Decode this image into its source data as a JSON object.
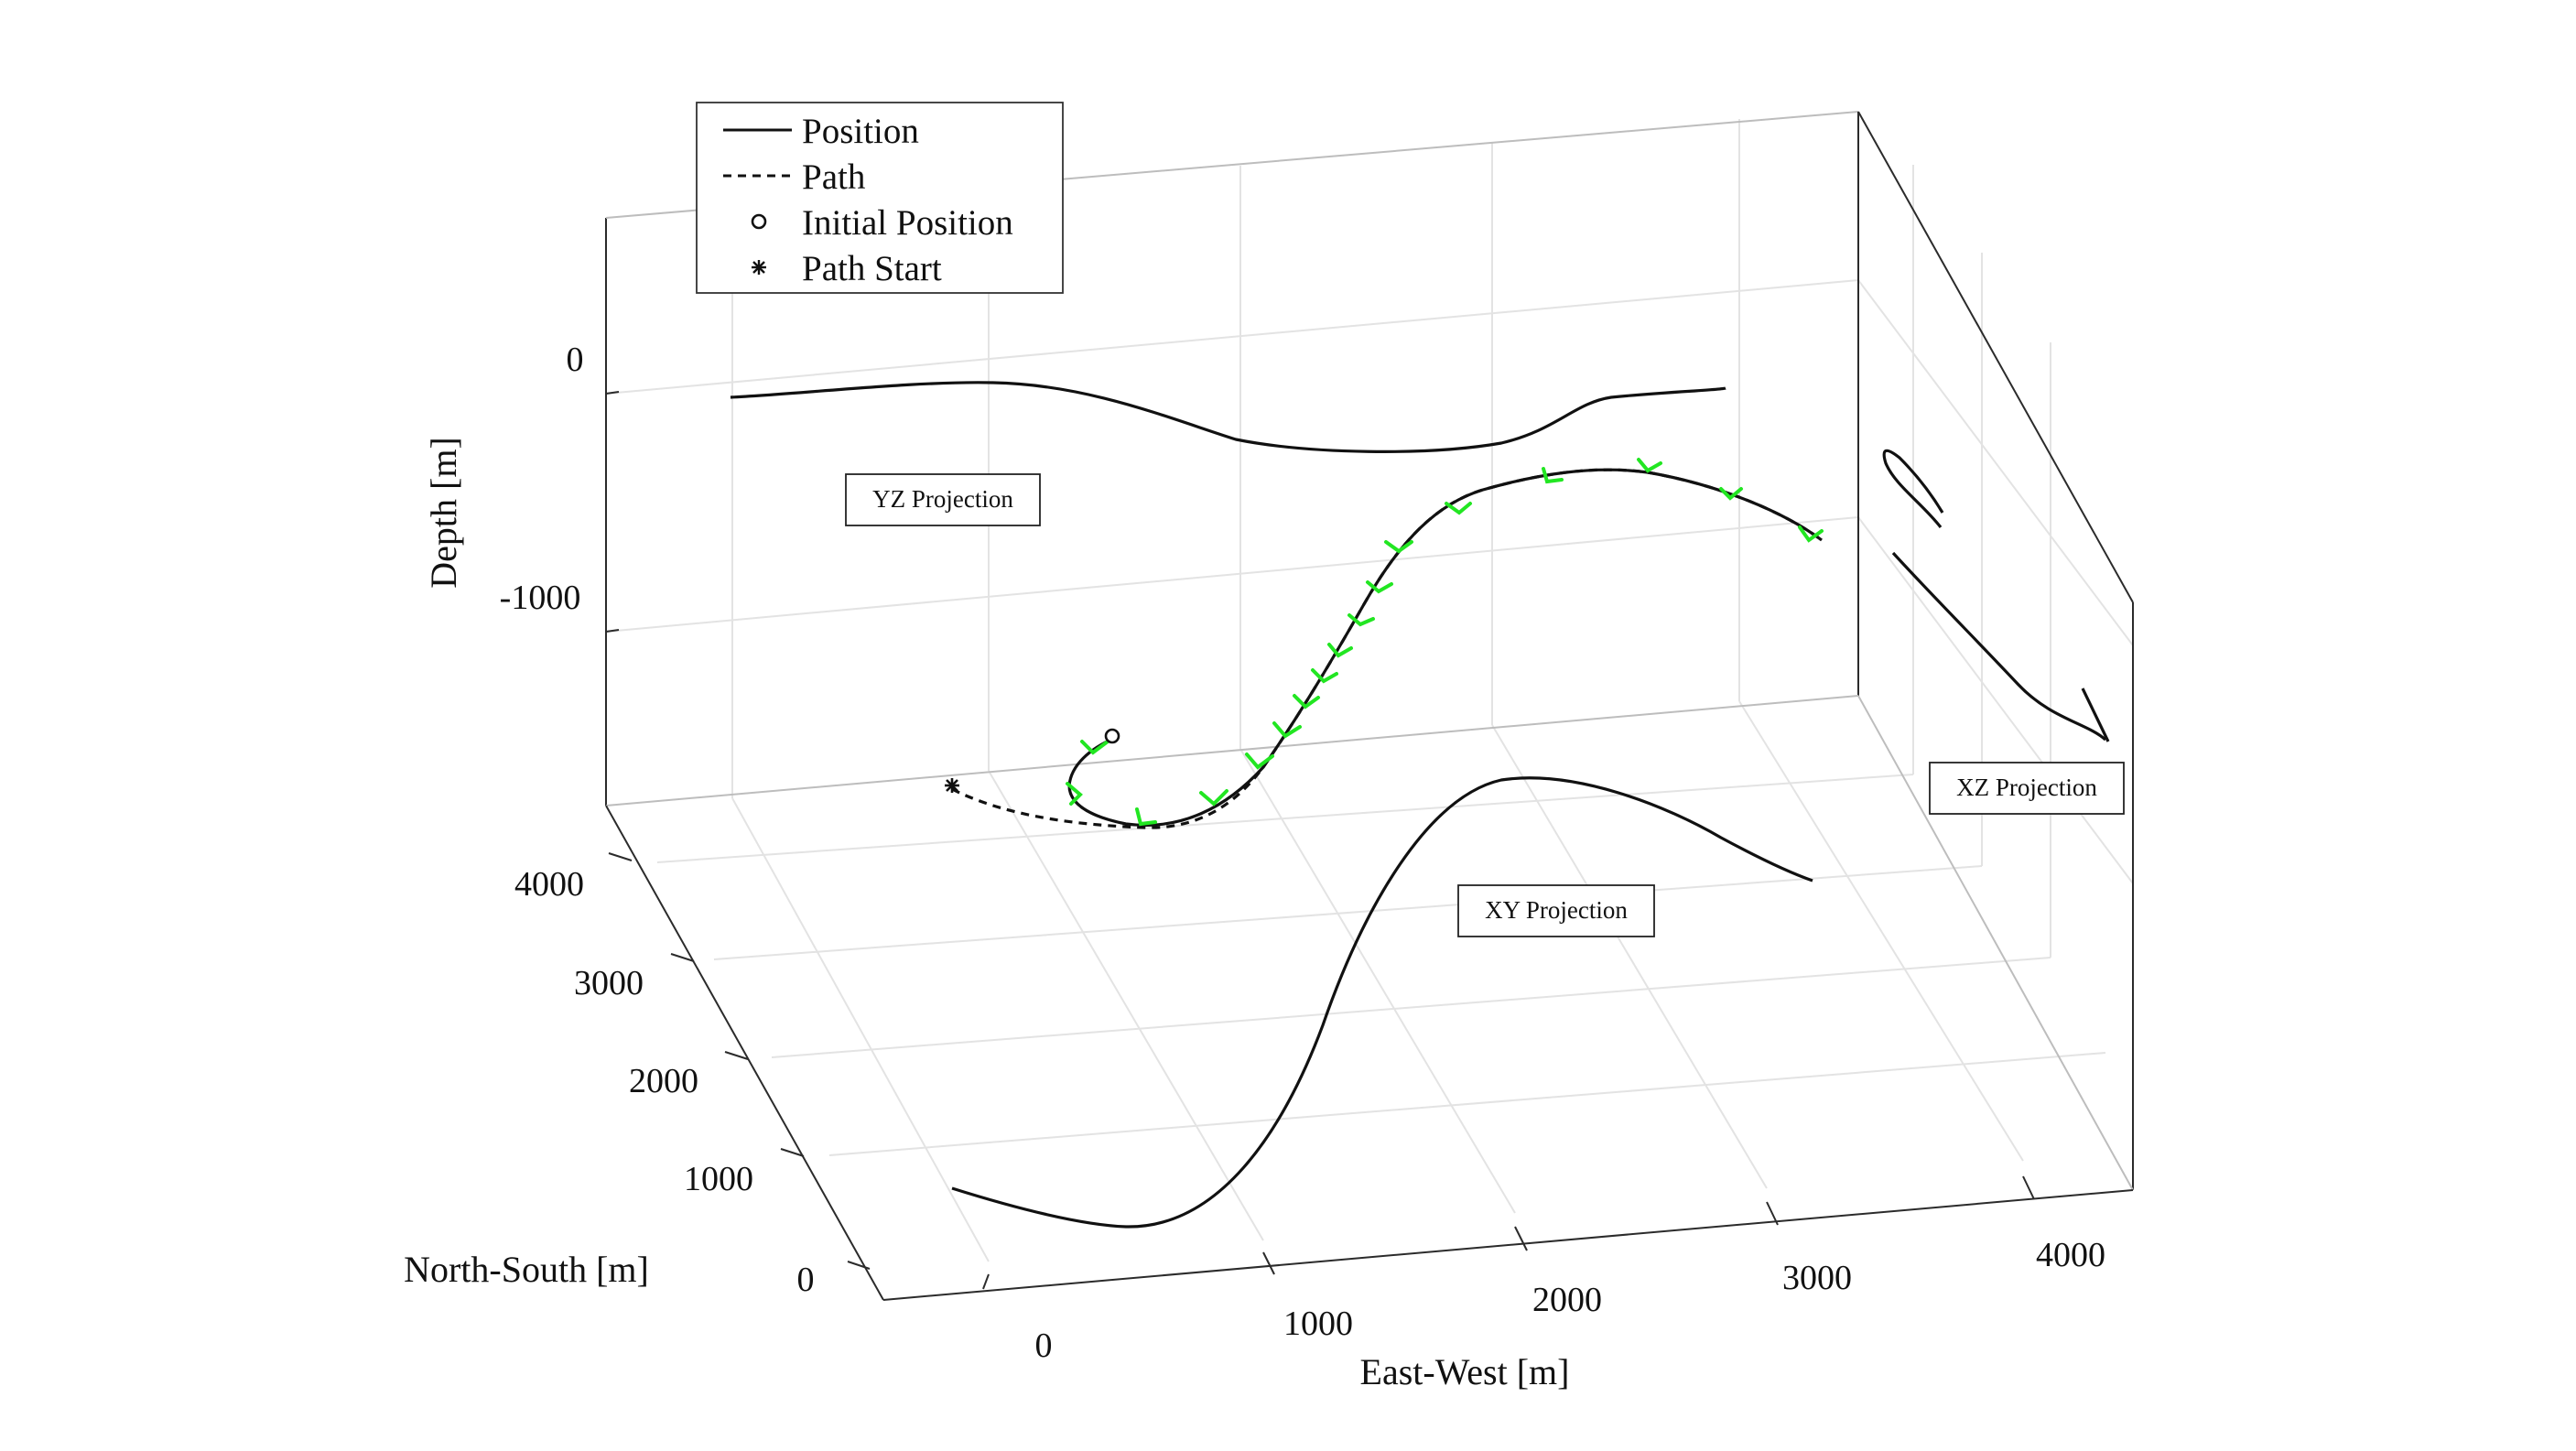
{
  "chart_data": {
    "type": "line",
    "title": "",
    "dimensions": "3d",
    "xlabel": "East-West [m]",
    "ylabel": "North-South [m]",
    "zlabel": "Depth [m]",
    "x_ticks": [
      "0",
      "1000",
      "2000",
      "3000",
      "4000"
    ],
    "y_ticks": [
      "0",
      "1000",
      "2000",
      "3000",
      "4000"
    ],
    "z_ticks": [
      "0",
      "-1000"
    ],
    "grid": true,
    "legend": {
      "placement": "top-left",
      "entries": [
        {
          "label": "Position",
          "marker": "solid-line"
        },
        {
          "label": "Path",
          "marker": "dashed-line"
        },
        {
          "label": "Initial Position",
          "marker": "circle"
        },
        {
          "label": "Path Start",
          "marker": "asterisk"
        }
      ]
    },
    "annotations": [
      "YZ Projection",
      "XZ Projection",
      "XY Projection"
    ],
    "series": [
      {
        "name": "Position",
        "style": "solid",
        "x": [
          -150,
          0,
          300,
          700,
          1050,
          1300,
          1550,
          1800,
          2050,
          2200,
          2350,
          2550,
          2700,
          2900,
          3100,
          3300
        ],
        "y": [
          500,
          220,
          20,
          -20,
          80,
          450,
          1100,
          2000,
          2750,
          3150,
          3350,
          3380,
          3300,
          3100,
          2900,
          2720
        ],
        "z": [
          -1540,
          -1650,
          -1760,
          -1800,
          -1760,
          -1640,
          -1460,
          -1270,
          -1060,
          -940,
          -860,
          -830,
          -850,
          -890,
          -940,
          -1000
        ]
      },
      {
        "name": "Path",
        "style": "dashed",
        "x": [
          -600,
          -400,
          -200,
          0,
          300,
          700,
          1050,
          1300,
          1550,
          1800,
          2050,
          2200,
          2350,
          2550,
          2700,
          2900,
          3100,
          3300
        ],
        "y": [
          -50,
          -50,
          -40,
          -30,
          -20,
          -20,
          80,
          450,
          1100,
          2000,
          2750,
          3150,
          3350,
          3380,
          3300,
          3100,
          2900,
          2720
        ],
        "z": [
          -1700,
          -1720,
          -1740,
          -1760,
          -1780,
          -1800,
          -1760,
          -1640,
          -1460,
          -1270,
          -1060,
          -940,
          -860,
          -830,
          -850,
          -890,
          -940,
          -1000
        ]
      }
    ]
  }
}
